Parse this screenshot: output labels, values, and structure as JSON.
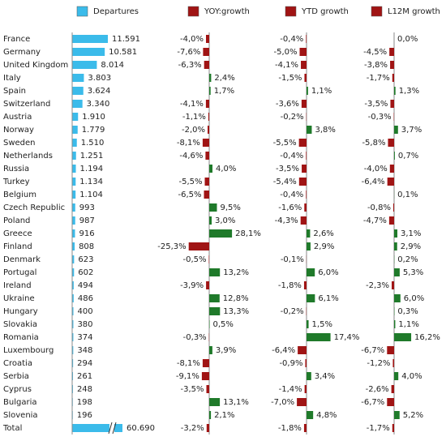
{
  "chart_data": {
    "type": "bar",
    "categories": [
      "France",
      "Germany",
      "United Kingdom",
      "Italy",
      "Spain",
      "Switzerland",
      "Austria",
      "Norway",
      "Sweden",
      "Netherlands",
      "Russia",
      "Turkey",
      "Belgium",
      "Czech Republic",
      "Poland",
      "Greece",
      "Finland",
      "Denmark",
      "Portugal",
      "Ireland",
      "Ukraine",
      "Hungary",
      "Slovakia",
      "Romania",
      "Luxembourg",
      "Croatia",
      "Serbia",
      "Cyprus",
      "Bulgaria",
      "Slovenia",
      "Total"
    ],
    "series": [
      {
        "name": "Departures",
        "color": "#3bbbea",
        "values": [
          11591,
          10581,
          8014,
          3803,
          3624,
          3340,
          1910,
          1779,
          1510,
          1251,
          1194,
          1134,
          1104,
          993,
          987,
          916,
          808,
          623,
          602,
          494,
          486,
          400,
          380,
          374,
          348,
          294,
          261,
          248,
          198,
          196,
          60690
        ],
        "value_labels": [
          "11.591",
          "10.581",
          "8.014",
          "3.803",
          "3.624",
          "3.340",
          "1.910",
          "1.779",
          "1.510",
          "1.251",
          "1.194",
          "1.134",
          "1.104",
          "993",
          "987",
          "916",
          "808",
          "623",
          "602",
          "494",
          "486",
          "400",
          "380",
          "374",
          "348",
          "294",
          "261",
          "248",
          "198",
          "196",
          "60.690"
        ]
      },
      {
        "name": "YOY:growth",
        "color": "#a01414",
        "positive_color": "#1f7a2a",
        "values": [
          -4.0,
          -7.6,
          -6.3,
          2.4,
          1.7,
          -4.1,
          -1.1,
          -2.0,
          -8.1,
          -4.6,
          4.0,
          -5.5,
          -6.5,
          9.5,
          3.0,
          28.1,
          -25.3,
          -0.5,
          13.2,
          -3.9,
          12.8,
          13.3,
          0.5,
          -0.3,
          3.9,
          -8.1,
          -9.1,
          -3.5,
          13.1,
          2.1,
          -3.2
        ],
        "value_labels": [
          "-4,0%",
          "-7,6%",
          "-6,3%",
          "2,4%",
          "1,7%",
          "-4,1%",
          "-1,1%",
          "-2,0%",
          "-8,1%",
          "-4,6%",
          "4,0%",
          "-5,5%",
          "-6,5%",
          "9,5%",
          "3,0%",
          "28,1%",
          "-25,3%",
          "-0,5%",
          "13,2%",
          "-3,9%",
          "12,8%",
          "13,3%",
          "0,5%",
          "-0,3%",
          "3,9%",
          "-8,1%",
          "-9,1%",
          "-3,5%",
          "13,1%",
          "2,1%",
          "-3,2%"
        ]
      },
      {
        "name": "YTD growth",
        "color": "#a01414",
        "positive_color": "#1f7a2a",
        "values": [
          -0.4,
          -5.0,
          -4.1,
          -1.5,
          1.1,
          -3.6,
          -0.2,
          3.8,
          -5.5,
          -0.4,
          -3.5,
          -5.4,
          -0.4,
          -1.6,
          -4.3,
          2.6,
          2.9,
          -0.1,
          6.0,
          -1.8,
          6.1,
          -0.2,
          1.5,
          17.4,
          -6.4,
          -0.9,
          3.4,
          -1.4,
          -7.0,
          4.8,
          -1.8
        ],
        "value_labels": [
          "-0,4%",
          "-5,0%",
          "-4,1%",
          "-1,5%",
          "1,1%",
          "-3,6%",
          "-0,2%",
          "3,8%",
          "-5,5%",
          "-0,4%",
          "-3,5%",
          "-5,4%",
          "-0,4%",
          "-1,6%",
          "-4,3%",
          "2,6%",
          "2,9%",
          "-0,1%",
          "6,0%",
          "-1,8%",
          "6,1%",
          "-0,2%",
          "1,5%",
          "17,4%",
          "-6,4%",
          "-0,9%",
          "3,4%",
          "-1,4%",
          "-7,0%",
          "4,8%",
          "-1,8%"
        ]
      },
      {
        "name": "L12M growth",
        "color": "#a01414",
        "positive_color": "#1f7a2a",
        "values": [
          0.0,
          -4.5,
          -3.8,
          -1.7,
          1.3,
          -3.5,
          -0.3,
          3.7,
          -5.8,
          0.7,
          -4.0,
          -6.4,
          0.1,
          -0.8,
          -4.7,
          3.1,
          2.9,
          0.2,
          5.3,
          -2.3,
          6.0,
          0.3,
          1.1,
          16.2,
          -6.7,
          -1.2,
          4.0,
          -2.6,
          -6.7,
          5.2,
          -1.7
        ],
        "value_labels": [
          "0,0%",
          "-4,5%",
          "-3,8%",
          "-1,7%",
          "1,3%",
          "-3,5%",
          "-0,3%",
          "3,7%",
          "-5,8%",
          "0,7%",
          "-4,0%",
          "-6,4%",
          "0,1%",
          "-0,8%",
          "-4,7%",
          "3,1%",
          "2,9%",
          "0,2%",
          "5,3%",
          "-2,3%",
          "6,0%",
          "0,3%",
          "1,1%",
          "16,2%",
          "-6,7%",
          "-1,2%",
          "4,0%",
          "-2,6%",
          "-6,7%",
          "5,2%",
          "-1,7%"
        ]
      }
    ]
  }
}
